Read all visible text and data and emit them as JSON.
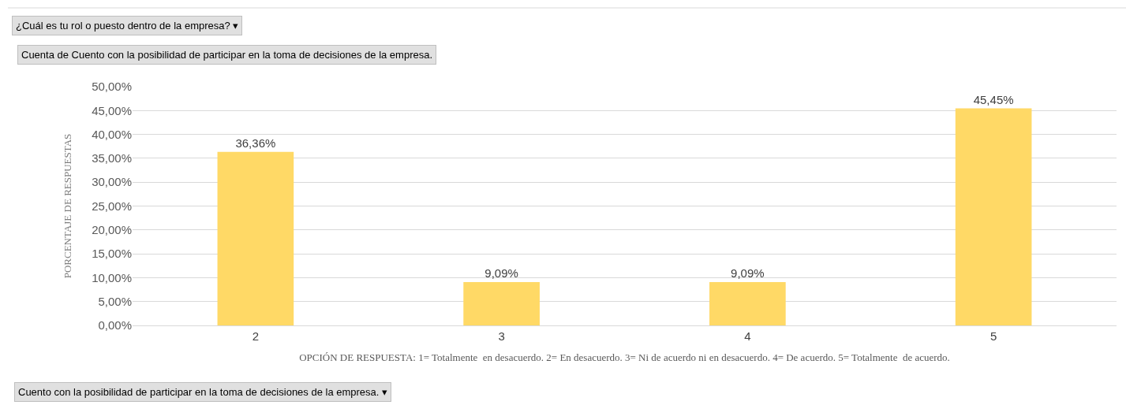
{
  "chart_data": {
    "type": "bar",
    "title": "Cuenta de Cuento con la posibilidad de participar en la toma de decisiones de la empresa.",
    "xlabel": "OPCIÓN DE RESPUESTA: 1= Totalmente  en desacuerdo. 2= En desacuerdo. 3= Ni de acuerdo ni en desacuerdo. 4= De acuerdo. 5= Totalmente  de acuerdo.",
    "ylabel": "PORCENTAJE DE RESPUESTAS",
    "annotations": [
      "¿Cuál es tu rol o puesto dentro de la empresa? ▾",
      "Cuento con la posibilidad de participar en la toma de decisiones de la empresa. ▾"
    ],
    "categories": [
      "2",
      "3",
      "4",
      "5"
    ],
    "values": [
      36.36,
      9.09,
      9.09,
      45.45
    ],
    "value_labels": [
      "36,36%",
      "9,09%",
      "9,09%",
      "45,45%"
    ],
    "color": "#ffd966",
    "ylim": [
      0,
      50
    ],
    "yticks": [
      {
        "value": 0,
        "label": "0,00%"
      },
      {
        "value": 5,
        "label": "5,00%"
      },
      {
        "value": 10,
        "label": "10,00%"
      },
      {
        "value": 15,
        "label": "15,00%"
      },
      {
        "value": 20,
        "label": "20,00%"
      },
      {
        "value": 25,
        "label": "25,00%"
      },
      {
        "value": 30,
        "label": "30,00%"
      },
      {
        "value": 35,
        "label": "35,00%"
      },
      {
        "value": 40,
        "label": "40,00%"
      },
      {
        "value": 45,
        "label": "45,00%"
      },
      {
        "value": 50,
        "label": "50,00%"
      }
    ],
    "grid": "y",
    "legend": false
  }
}
